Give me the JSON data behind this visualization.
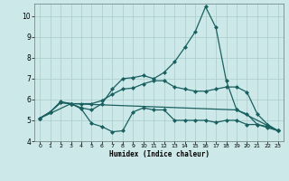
{
  "xlabel": "Humidex (Indice chaleur)",
  "bg_color": "#cce8e8",
  "grid_color": "#aacccc",
  "line_color": "#1a6060",
  "xlim": [
    -0.5,
    23.5
  ],
  "ylim": [
    4.0,
    10.6
  ],
  "yticks": [
    4,
    5,
    6,
    7,
    8,
    9,
    10
  ],
  "xticks": [
    0,
    1,
    2,
    3,
    4,
    5,
    6,
    7,
    8,
    9,
    10,
    11,
    12,
    13,
    14,
    15,
    16,
    17,
    18,
    19,
    20,
    21,
    22,
    23
  ],
  "series": {
    "line1_x": [
      0,
      1,
      2,
      3,
      4,
      5,
      6,
      7,
      8,
      9,
      10,
      11,
      12,
      13,
      14,
      15,
      16,
      17,
      18,
      19,
      20,
      21,
      22,
      23
    ],
    "line1_y": [
      5.1,
      5.4,
      5.85,
      5.8,
      5.55,
      4.85,
      4.7,
      4.45,
      4.5,
      5.4,
      5.6,
      5.5,
      5.5,
      5.0,
      5.0,
      5.0,
      5.0,
      4.9,
      5.0,
      5.0,
      4.8,
      4.8,
      4.65,
      4.5
    ],
    "line2_x": [
      0,
      1,
      2,
      3,
      4,
      5,
      6,
      7,
      8,
      9,
      10,
      11,
      12,
      13,
      14,
      15,
      16,
      17,
      18,
      19,
      20,
      21,
      22,
      23
    ],
    "line2_y": [
      5.1,
      5.4,
      5.85,
      5.8,
      5.8,
      5.8,
      5.95,
      6.25,
      6.5,
      6.55,
      6.75,
      6.9,
      6.9,
      6.6,
      6.5,
      6.4,
      6.4,
      6.5,
      6.6,
      6.6,
      6.35,
      5.3,
      4.8,
      4.5
    ],
    "line3_x": [
      0,
      3,
      19,
      23
    ],
    "line3_y": [
      5.1,
      5.8,
      5.5,
      4.5
    ],
    "line4_x": [
      0,
      1,
      2,
      3,
      4,
      5,
      6,
      7,
      8,
      9,
      10,
      11,
      12,
      13,
      14,
      15,
      16,
      17,
      18,
      19,
      20,
      21,
      22,
      23
    ],
    "line4_y": [
      5.1,
      5.4,
      5.9,
      5.8,
      5.6,
      5.5,
      5.8,
      6.5,
      7.0,
      7.05,
      7.15,
      7.0,
      7.3,
      7.8,
      8.5,
      9.25,
      10.45,
      9.45,
      6.9,
      5.5,
      5.3,
      4.8,
      4.7,
      4.5
    ]
  }
}
